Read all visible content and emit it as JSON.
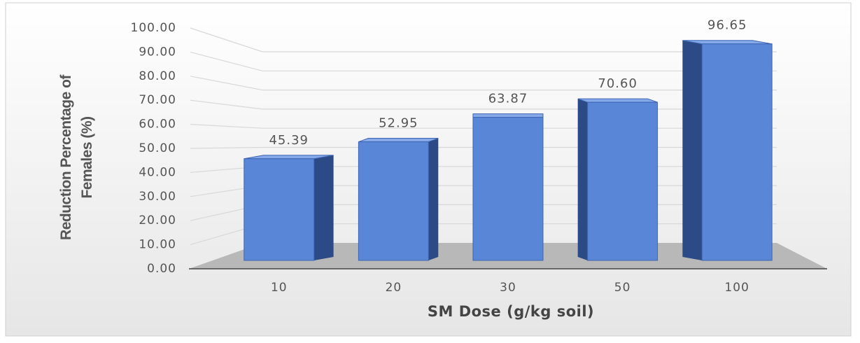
{
  "chart_data": {
    "type": "bar3d",
    "y_label": "Reduction Percentage of Females (%)",
    "x_label": "SM Dose (g/kg soil)",
    "categories": [
      "10",
      "20",
      "30",
      "50",
      "100"
    ],
    "values": [
      45.39,
      52.95,
      63.87,
      70.6,
      96.65
    ],
    "value_labels": [
      "45.39",
      "52.95",
      "63.87",
      "70.60",
      "96.65"
    ],
    "color": "#5a86d8",
    "ylim": [
      0,
      100
    ],
    "yticks": [
      {
        "value": 0,
        "label": "0.00"
      },
      {
        "value": 10,
        "label": "10.00"
      },
      {
        "value": 20,
        "label": "20.00"
      },
      {
        "value": 30,
        "label": "30.00"
      },
      {
        "value": 40,
        "label": "40.00"
      },
      {
        "value": 50,
        "label": "50.00"
      },
      {
        "value": 60,
        "label": "60.00"
      },
      {
        "value": 70,
        "label": "70.00"
      },
      {
        "value": 80,
        "label": "80.00"
      },
      {
        "value": 90,
        "label": "90.00"
      },
      {
        "value": 100,
        "label": "100.00"
      }
    ],
    "grid": true
  }
}
